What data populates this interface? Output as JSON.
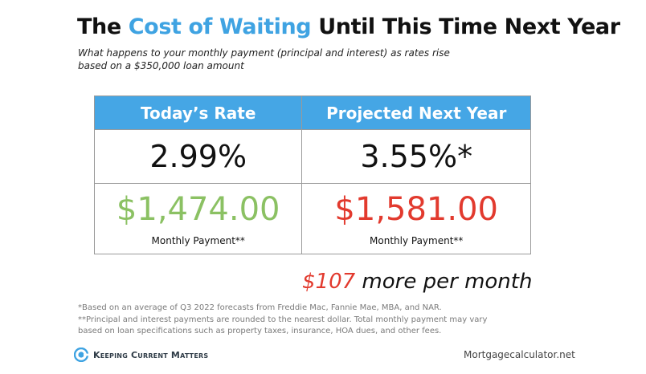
{
  "title": {
    "prefix": "The ",
    "highlight": "Cost of Waiting",
    "suffix": " Until This Time Next Year",
    "highlight_color": "#3fa3e2"
  },
  "subtitle": [
    "What happens to your monthly payment (principal and interest) as rates rise",
    "based on a $350,000 loan amount"
  ],
  "table": {
    "header_color": "#45a6e5",
    "headers": [
      "Today’s Rate",
      "Projected Next Year"
    ],
    "rates": [
      "2.99%",
      "3.55%*"
    ],
    "payments": [
      "$1,474.00",
      "$1,581.00"
    ],
    "payment_colors": [
      "#8bc163",
      "#e23a2e"
    ],
    "payment_labels": [
      "Monthly Payment**",
      "Monthly Payment**"
    ]
  },
  "difference": {
    "amount": "$107",
    "text": " more per month"
  },
  "footnotes": [
    "*Based on an average of Q3 2022 forecasts from Freddie Mac, Fannie Mae, MBA, and NAR.",
    "**Principal and interest payments are rounded to the nearest dollar. Total monthly payment may vary",
    "based on loan specifications such as property taxes, insurance, HOA dues, and other fees."
  ],
  "brand": {
    "name": "Keeping Current Matters",
    "icon": "kcm-logo-icon"
  },
  "source": "Mortgagecalculator.net"
}
